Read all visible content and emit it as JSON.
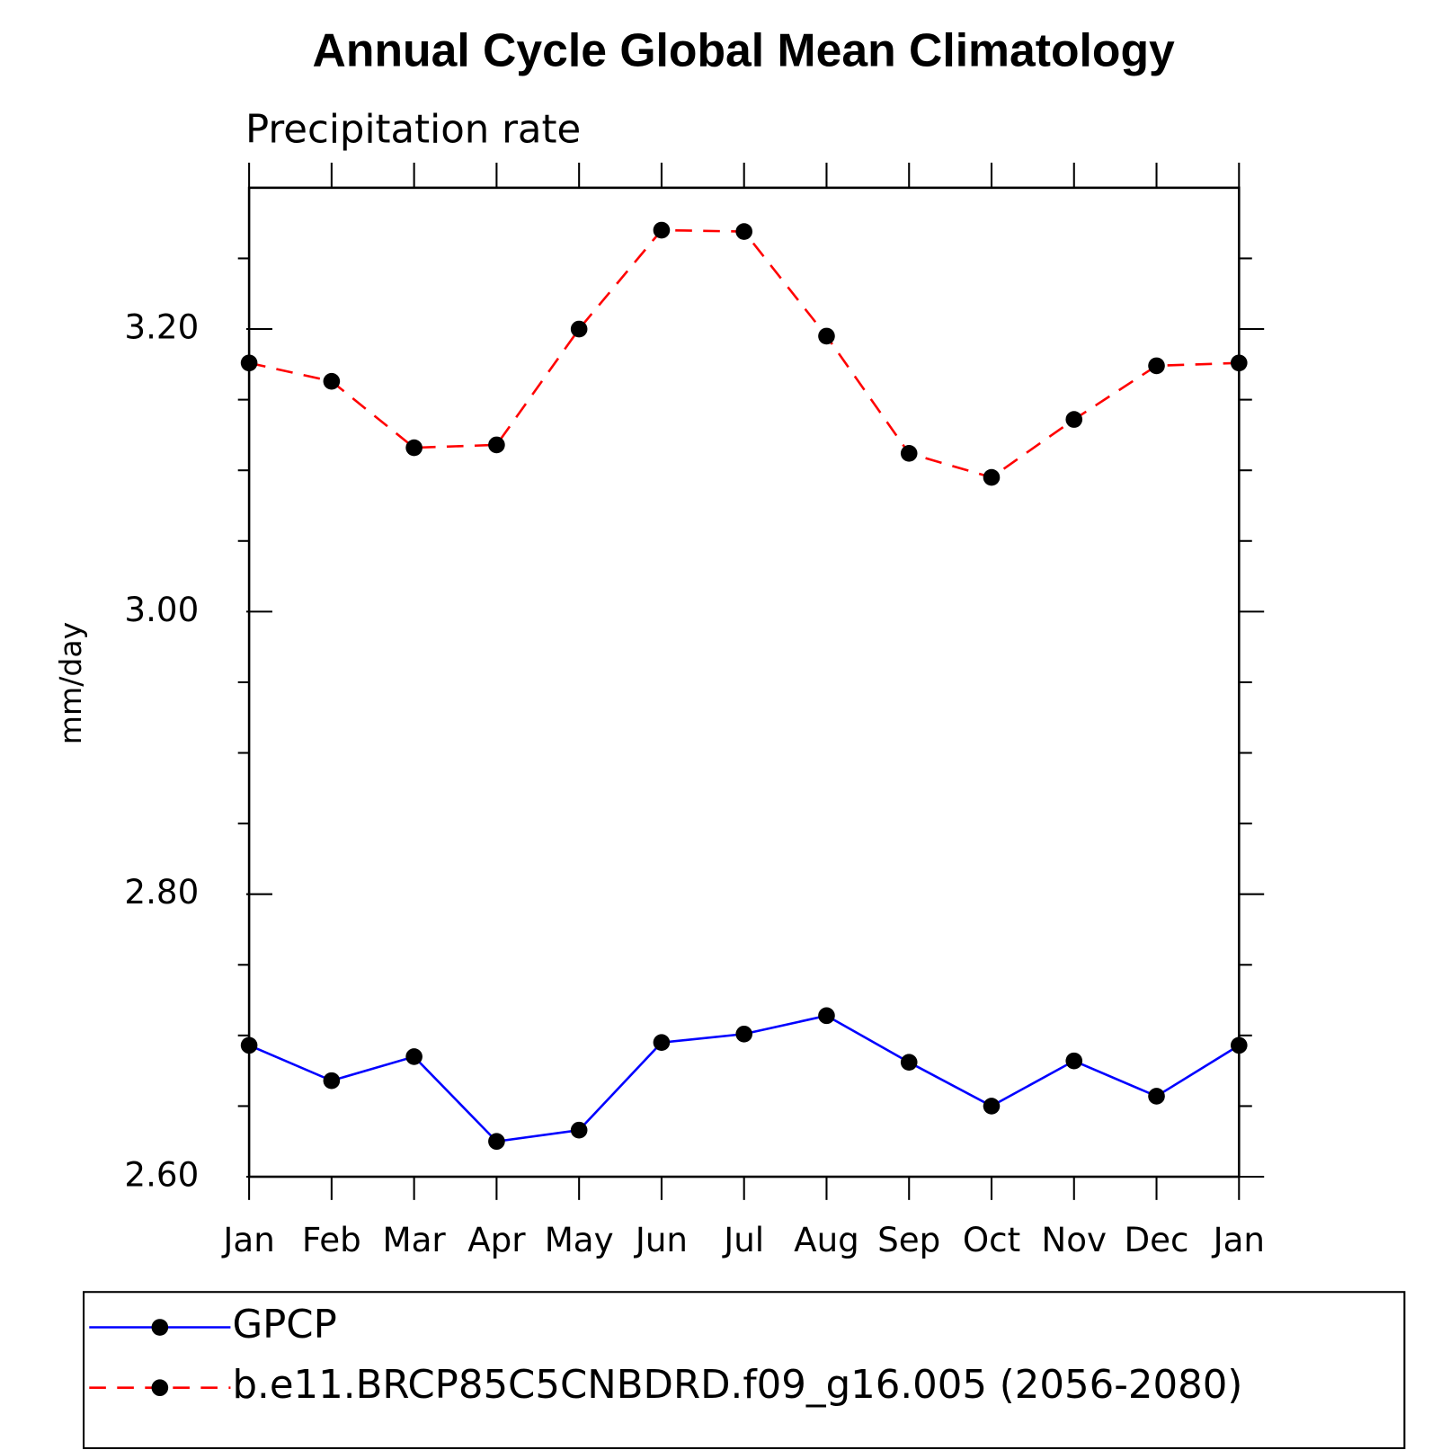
{
  "chart_data": {
    "type": "line",
    "title": "Annual Cycle Global Mean Climatology",
    "subtitle": "Precipitation rate",
    "y_label": "mm/day",
    "categories": [
      "Jan",
      "Feb",
      "Mar",
      "Apr",
      "May",
      "Jun",
      "Jul",
      "Aug",
      "Sep",
      "Oct",
      "Nov",
      "Dec",
      "Jan"
    ],
    "series": [
      {
        "name": "GPCP",
        "color": "#0000ff",
        "dash": "solid",
        "values": [
          2.693,
          2.668,
          2.685,
          2.625,
          2.633,
          2.695,
          2.701,
          2.714,
          2.681,
          2.65,
          2.682,
          2.657,
          2.693
        ]
      },
      {
        "name": "b.e11.BRCP85C5CNBDRD.f09_g16.005 (2056-2080)",
        "color": "#ff0000",
        "dash": "dashed",
        "values": [
          3.176,
          3.163,
          3.116,
          3.118,
          3.2,
          3.27,
          3.269,
          3.195,
          3.112,
          3.095,
          3.136,
          3.174,
          3.176
        ]
      }
    ],
    "marker_color": "#000000",
    "ylim": [
      2.6,
      3.3
    ],
    "yticks": [
      {
        "value": 2.6,
        "label": "2.60"
      },
      {
        "value": 2.8,
        "label": "2.80"
      },
      {
        "value": 3.0,
        "label": "3.00"
      },
      {
        "value": 3.2,
        "label": "3.20"
      }
    ],
    "yminorticks": [
      2.65,
      2.7,
      2.75,
      2.85,
      2.9,
      2.95,
      3.05,
      3.1,
      3.15,
      3.25
    ],
    "grid": false,
    "legend": "bottom"
  }
}
